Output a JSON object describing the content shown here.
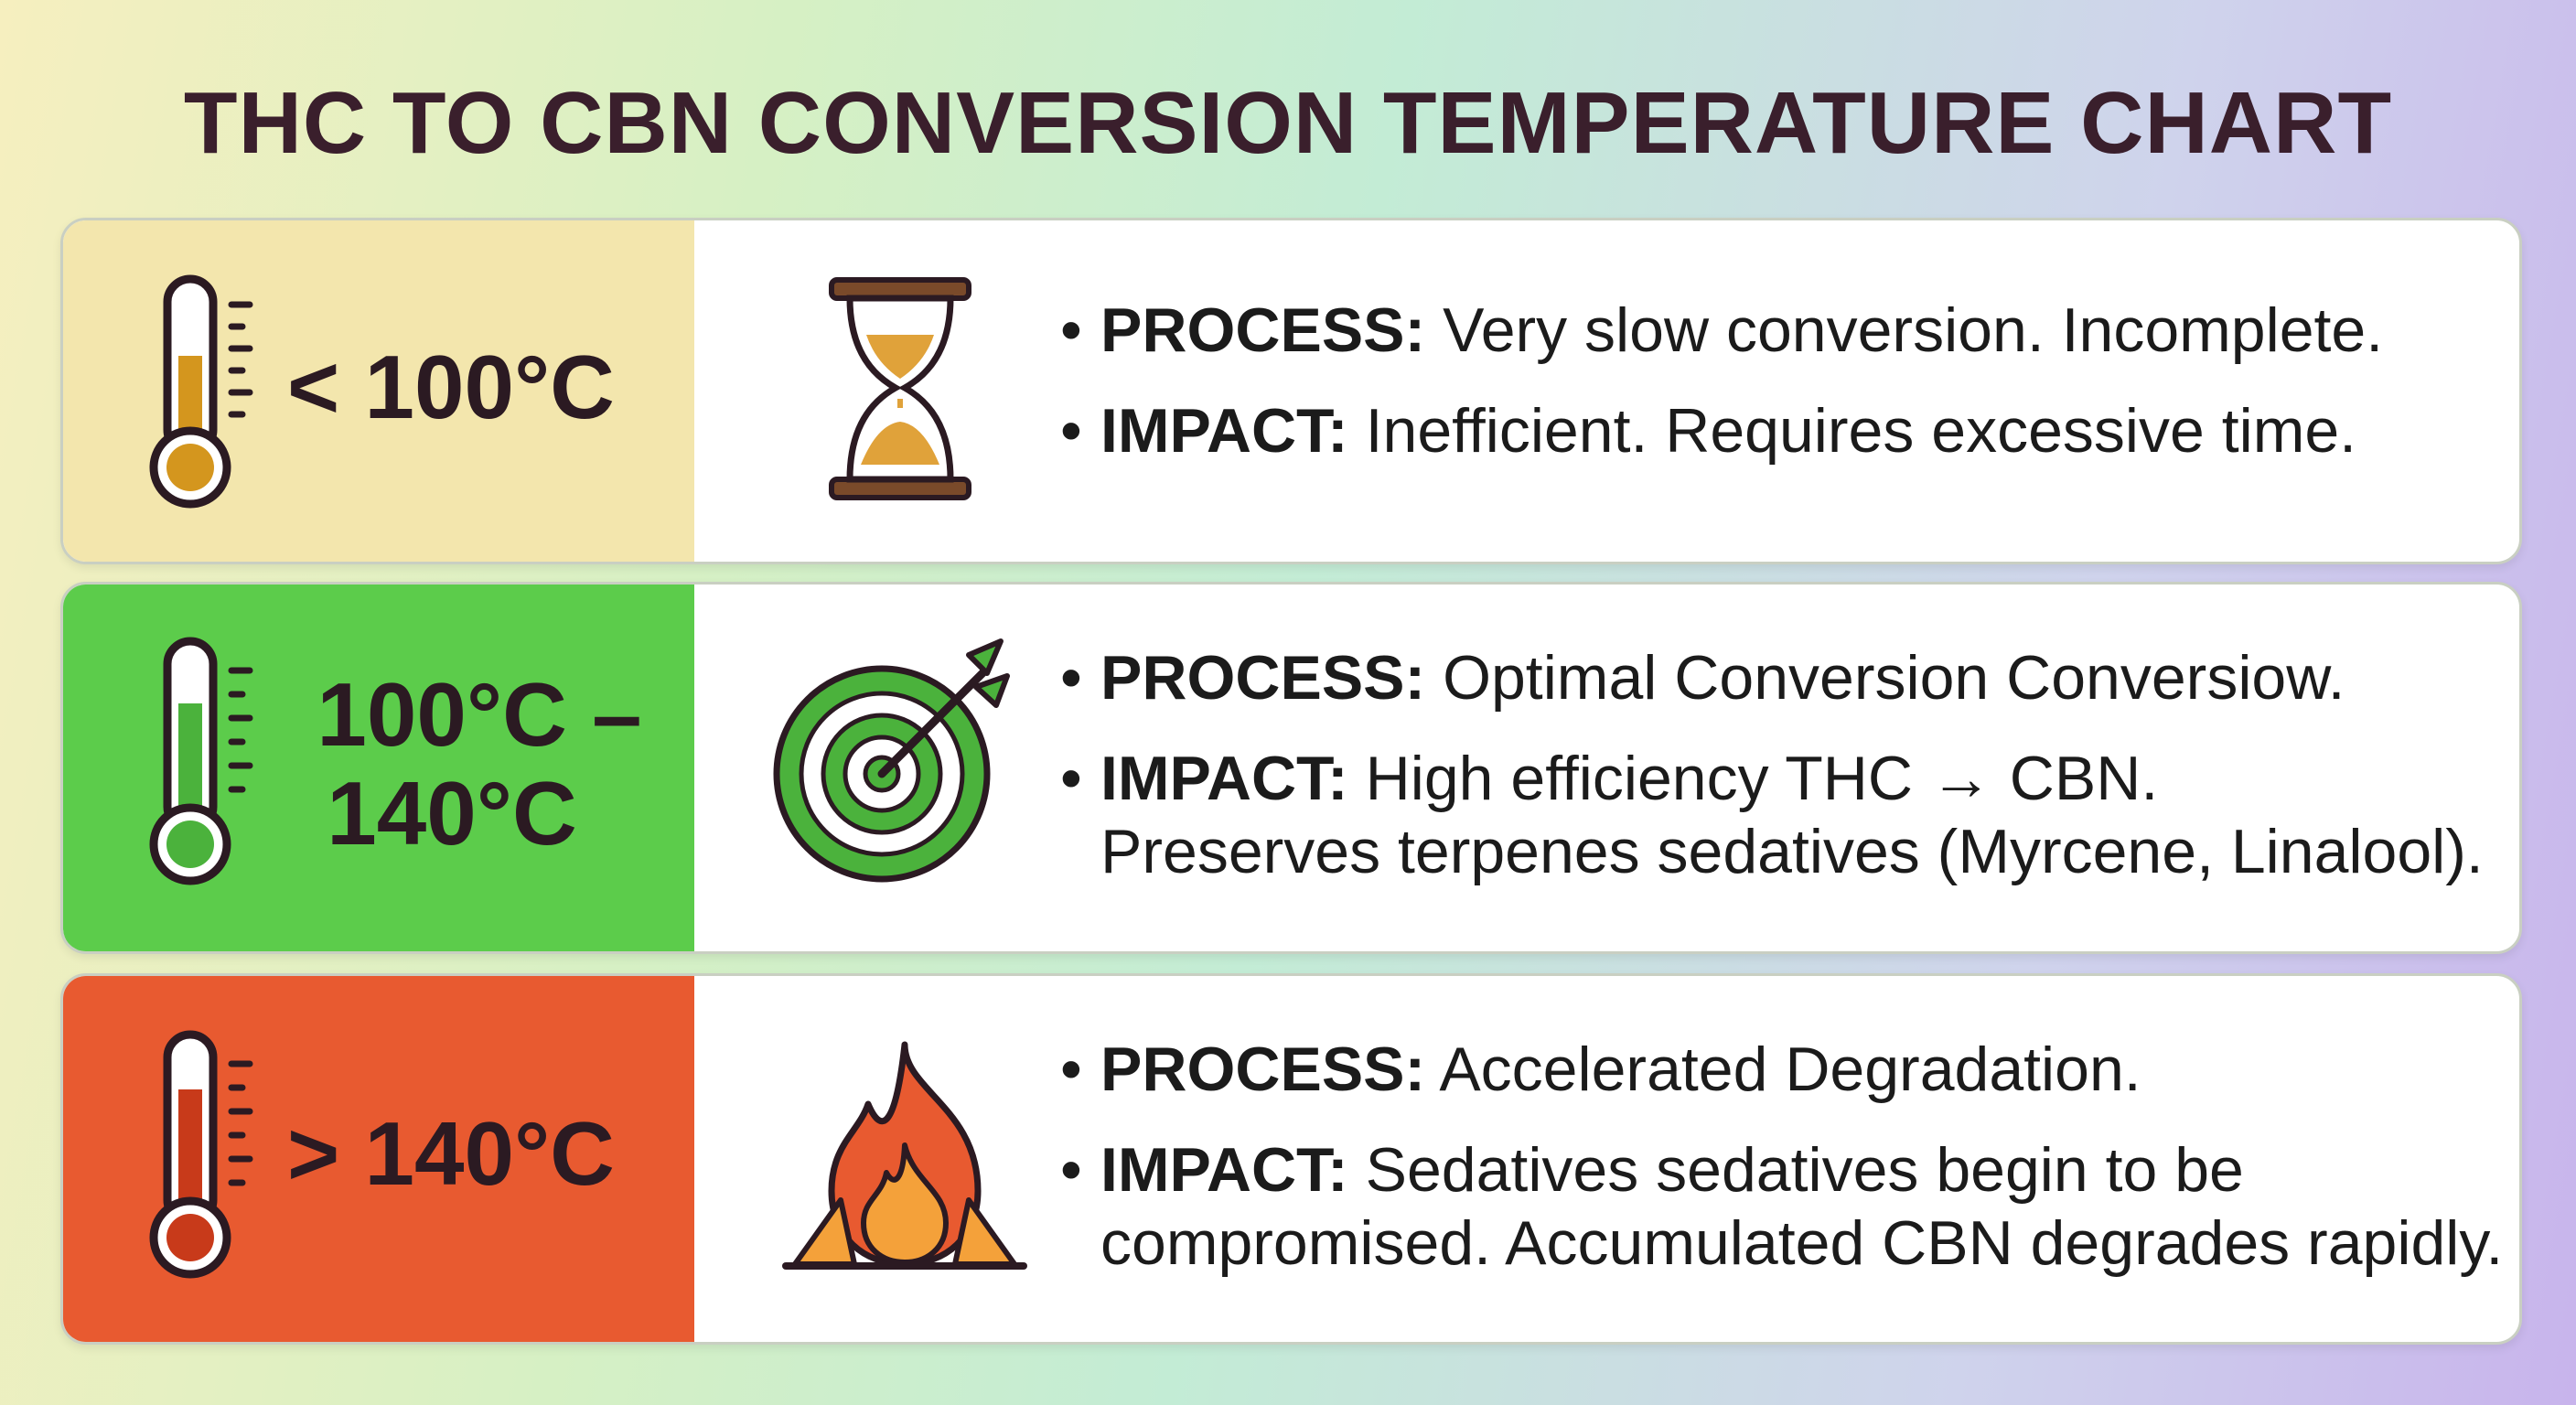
{
  "title": "THC TO CBN CONVERSION TEMPERATURE CHART",
  "rows": [
    {
      "temp": "< 100°C",
      "icon": "hourglass-icon",
      "color": "#f3e6ad",
      "bullets": [
        {
          "label": "PROCESS:",
          "text": "Very slow conversion. Incomplete."
        },
        {
          "label": "IMPACT:",
          "text": "Inefficient. Requires excessive time."
        }
      ]
    },
    {
      "temp_line1": "100°C –",
      "temp_line2": "140°C",
      "icon": "target-icon",
      "color": "#5ccc4b",
      "bullets": [
        {
          "label": "PROCESS:",
          "text": "Optimal Conversion Conversiow."
        },
        {
          "label": "IMPACT:",
          "text": "High efficiency THC → CBN.",
          "text2": "Preserves terpenes sedatives (Myrcene, Linalool)."
        }
      ]
    },
    {
      "temp": "> 140°C",
      "icon": "fire-icon",
      "color": "#e85a30",
      "bullets": [
        {
          "label": "PROCESS:",
          "text": "Accelerated Degradation."
        },
        {
          "label": "IMPACT:",
          "text": "Sedatives sedatives begin to be",
          "text2": "compromised. Accumulated CBN degrades rapidly."
        }
      ]
    }
  ]
}
